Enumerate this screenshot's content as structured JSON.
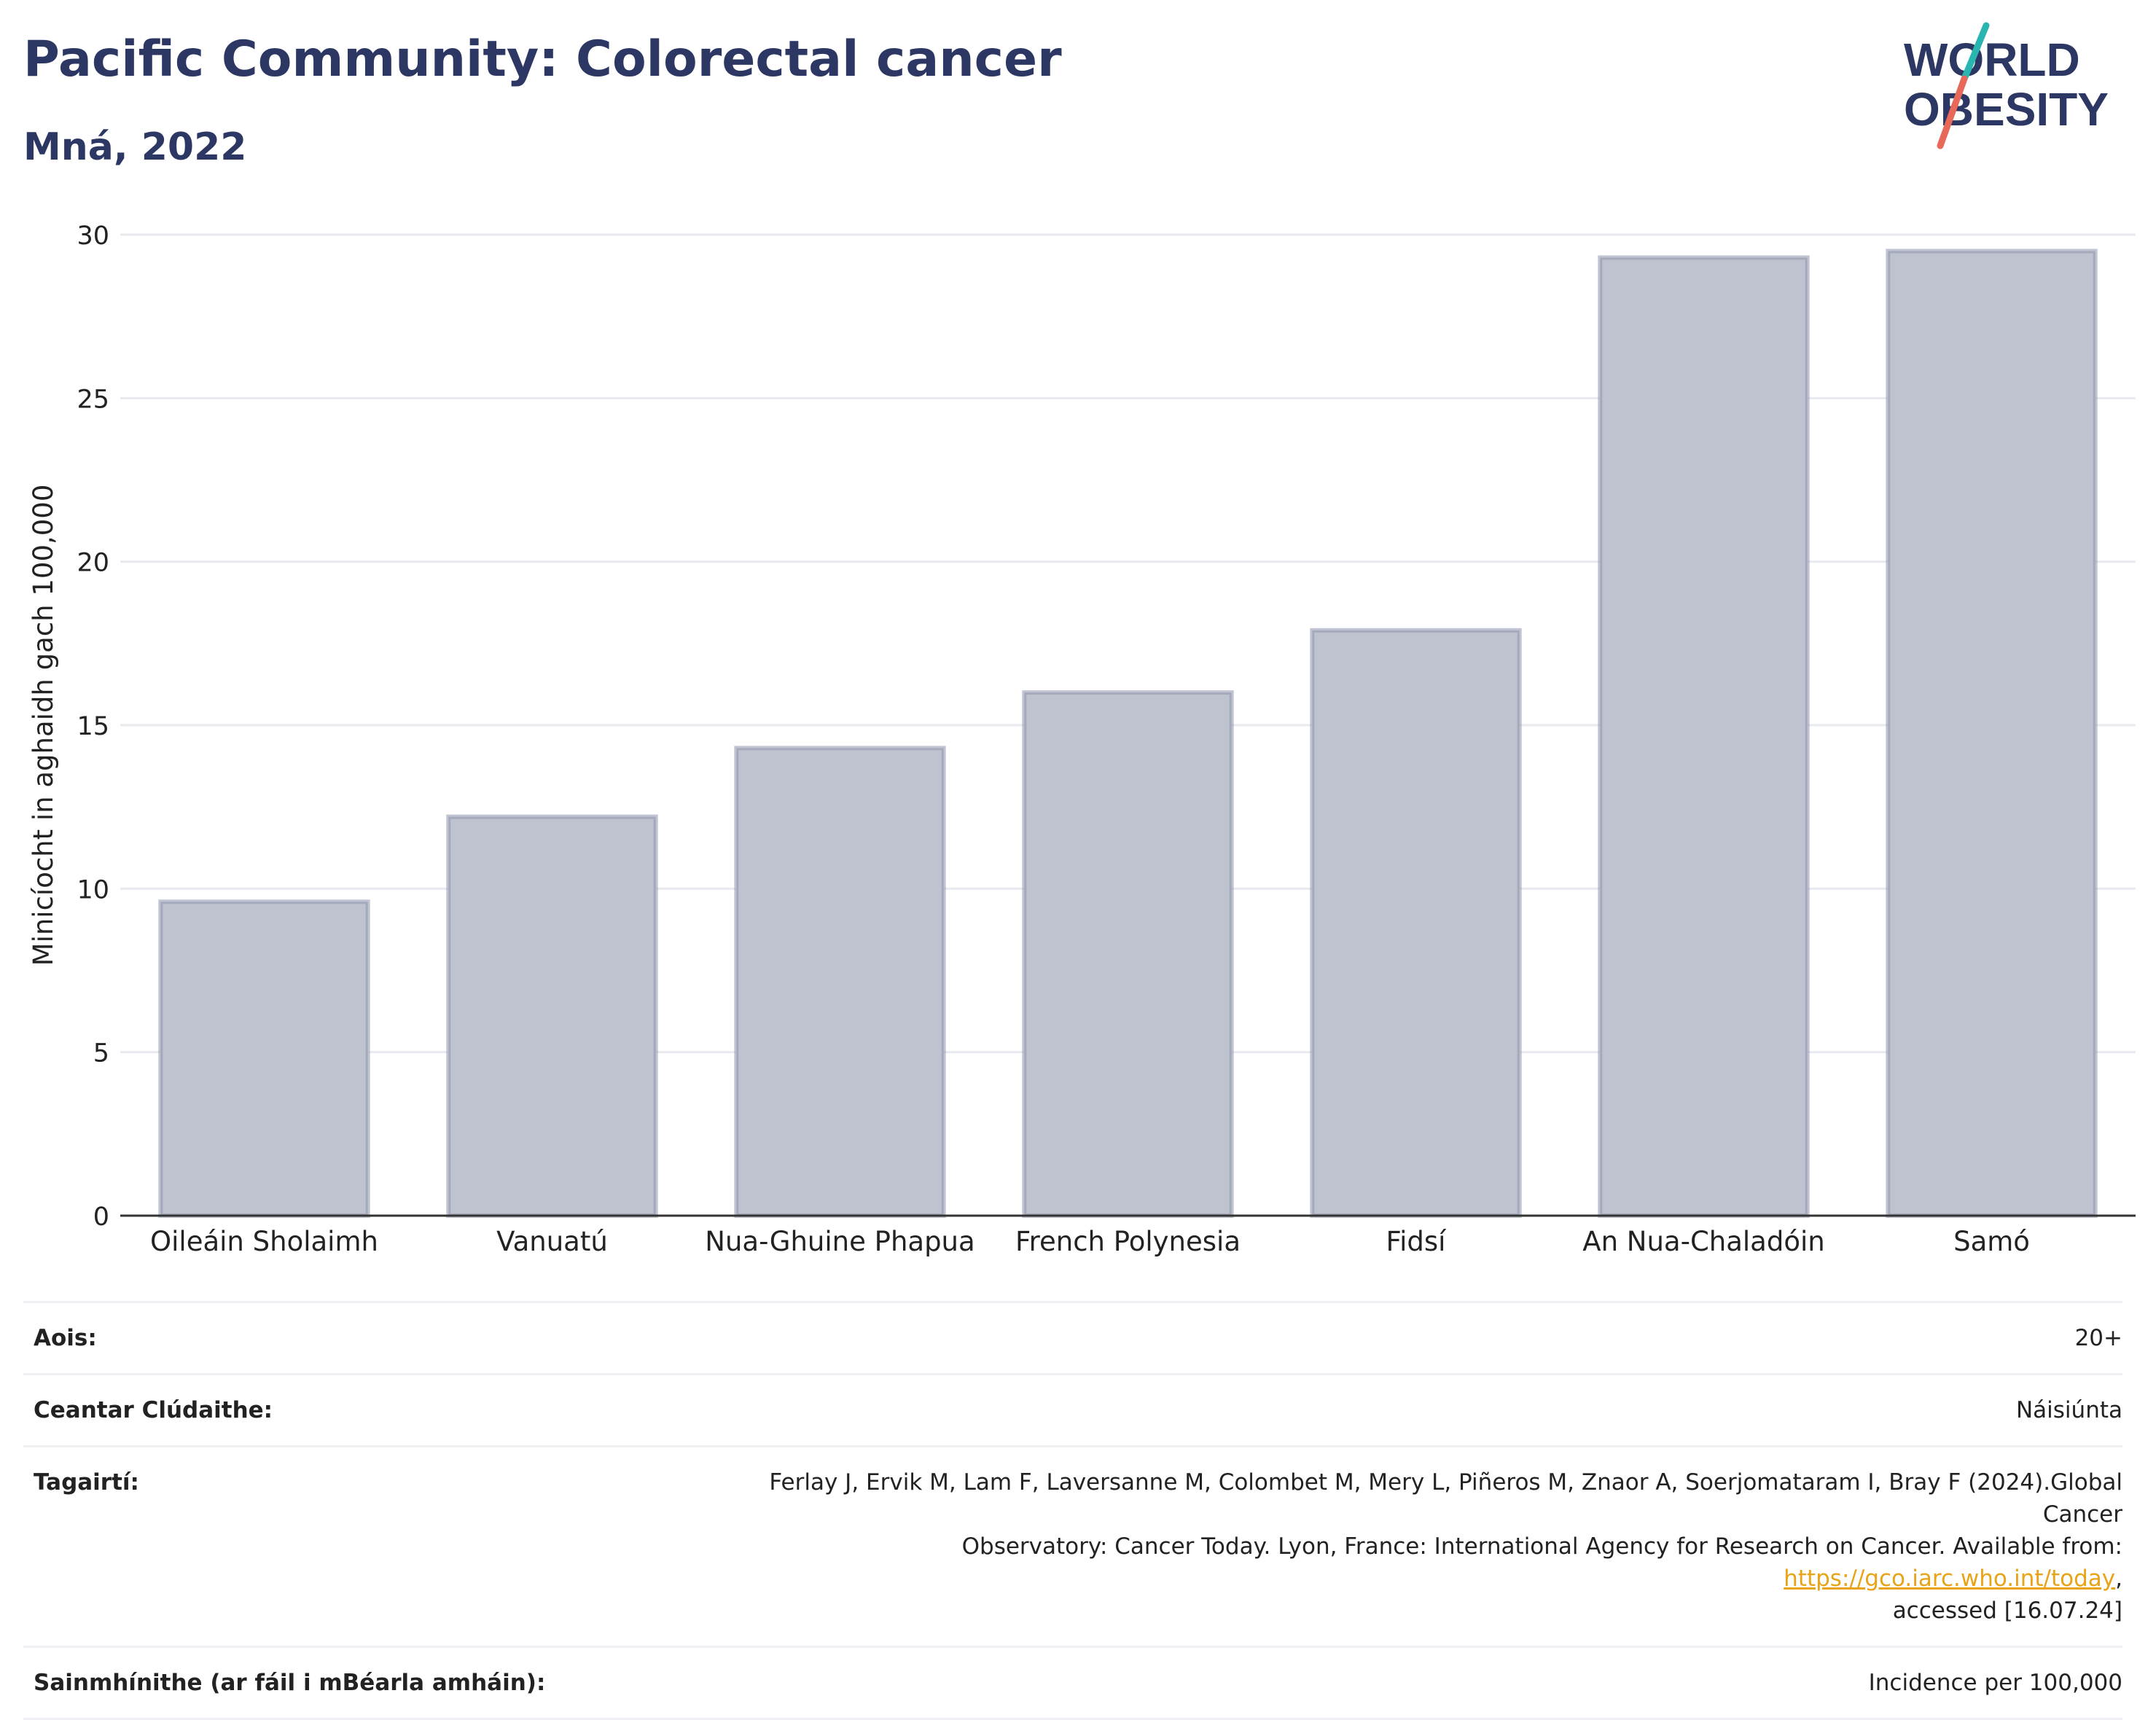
{
  "header": {
    "title": "Pacific Community: Colorectal cancer",
    "subtitle": "Mná, 2022"
  },
  "logo": {
    "line1": "WORLD",
    "line2": "OBESITY",
    "colors": {
      "text": "#2c3763",
      "slash_top": "#2bb5b0",
      "slash_bottom": "#e8685a"
    }
  },
  "chart_data": {
    "type": "bar",
    "categories": [
      "Oileáin Sholaimh",
      "Vanuatú",
      "Nua-Ghuine Phapua",
      "French Polynesia",
      "Fidsí",
      "An Nua-Chaladóin",
      "Samó"
    ],
    "values": [
      9.6,
      12.2,
      14.3,
      16.0,
      17.9,
      29.3,
      29.5
    ],
    "ylabel": "Minicíocht in aghaidh gach 100,000",
    "ylim": [
      0,
      30
    ],
    "yticks": [
      0,
      5,
      10,
      15,
      20,
      25,
      30
    ],
    "grid": true,
    "colors": {
      "bar_fill": "#bfc3cf",
      "bar_stroke": "#8e94ad",
      "grid": "#e8eaef",
      "axis": "#333333"
    }
  },
  "meta": {
    "age_label": "Aois:",
    "age_value": "20+",
    "area_label": "Ceantar Clúdaithe:",
    "area_value": "Náisiúnta",
    "ref_label": "Tagairtí:",
    "ref_line1": "Ferlay J, Ervik M, Lam F, Laversanne M, Colombet M, Mery L, Piñeros M, Znaor A, Soerjomataram I, Bray F (2024).Global Cancer",
    "ref_line2_pre": "Observatory: Cancer Today. Lyon, France: International Agency for Research on Cancer. Available from: ",
    "ref_link": "https://gco.iarc.who.int/today",
    "ref_line2_post": ",",
    "ref_line3": "accessed [16.07.24]",
    "def_label": "Sainmhínithe (ar fáil i mBéarla amháin):",
    "def_value": "Incidence per 100,000"
  }
}
